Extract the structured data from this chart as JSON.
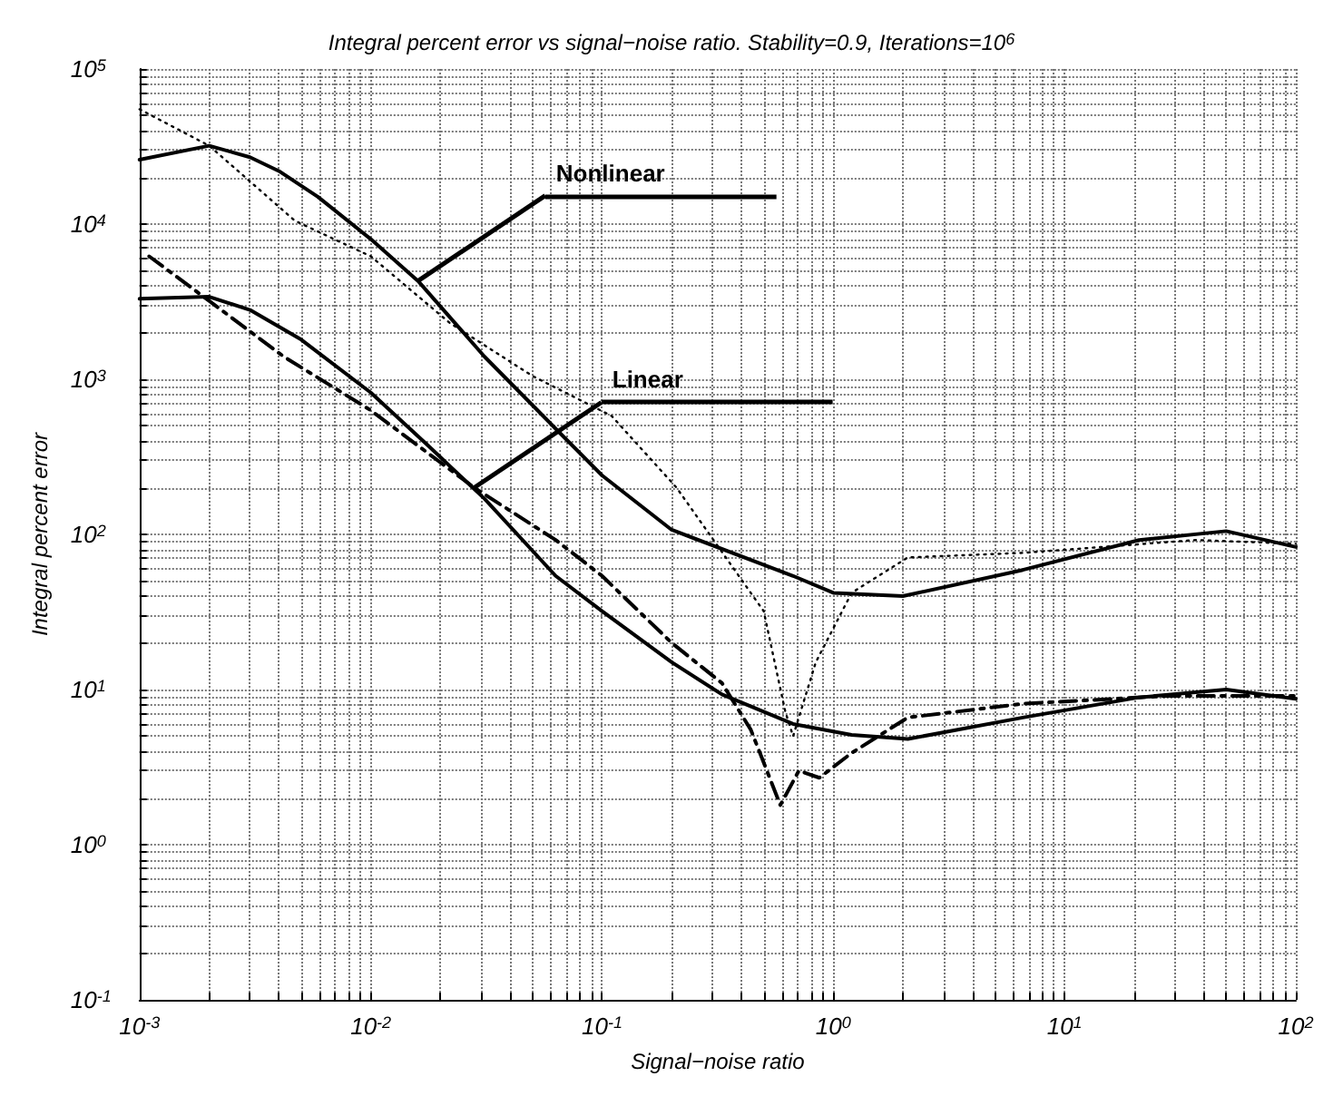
{
  "chart_data": {
    "type": "line",
    "title": "Integral percent error vs signal−noise ratio. Stability=0.9, Iterations=10$^{6}$",
    "xlabel": "Signal−noise ratio",
    "ylabel": "Integral percent error",
    "log": "xy",
    "grid": true,
    "marker": "none",
    "xlim": [
      0.001,
      100
    ],
    "ylim": [
      0.1,
      100000
    ],
    "xticks": [
      {
        "value": 0.001,
        "label": "10$^{-3}$"
      },
      {
        "value": 0.002,
        "label": null
      },
      {
        "value": 0.003,
        "label": null
      },
      {
        "value": 0.004,
        "label": null
      },
      {
        "value": 0.005,
        "label": null
      },
      {
        "value": 0.006,
        "label": null
      },
      {
        "value": 0.007,
        "label": null
      },
      {
        "value": 0.008,
        "label": null
      },
      {
        "value": 0.009,
        "label": null
      },
      {
        "value": 0.01,
        "label": "10$^{-2}$"
      },
      {
        "value": 0.02,
        "label": null
      },
      {
        "value": 0.03,
        "label": null
      },
      {
        "value": 0.04,
        "label": null
      },
      {
        "value": 0.05,
        "label": null
      },
      {
        "value": 0.06,
        "label": null
      },
      {
        "value": 0.07,
        "label": null
      },
      {
        "value": 0.08,
        "label": null
      },
      {
        "value": 0.09,
        "label": null
      },
      {
        "value": 0.1,
        "label": "10$^{-1}$"
      },
      {
        "value": 0.2,
        "label": null
      },
      {
        "value": 0.3,
        "label": null
      },
      {
        "value": 0.4,
        "label": null
      },
      {
        "value": 0.5,
        "label": null
      },
      {
        "value": 0.6,
        "label": null
      },
      {
        "value": 0.7,
        "label": null
      },
      {
        "value": 0.8,
        "label": null
      },
      {
        "value": 0.9,
        "label": null
      },
      {
        "value": 1,
        "label": "10$^{0}$"
      },
      {
        "value": 2,
        "label": null
      },
      {
        "value": 3,
        "label": null
      },
      {
        "value": 4,
        "label": null
      },
      {
        "value": 5,
        "label": null
      },
      {
        "value": 6,
        "label": null
      },
      {
        "value": 7,
        "label": null
      },
      {
        "value": 8,
        "label": null
      },
      {
        "value": 9,
        "label": null
      },
      {
        "value": 10,
        "label": "10$^{1}$"
      },
      {
        "value": 20,
        "label": null
      },
      {
        "value": 30,
        "label": null
      },
      {
        "value": 40,
        "label": null
      },
      {
        "value": 50,
        "label": null
      },
      {
        "value": 60,
        "label": null
      },
      {
        "value": 70,
        "label": null
      },
      {
        "value": 80,
        "label": null
      },
      {
        "value": 90,
        "label": null
      },
      {
        "value": 100,
        "label": "10$^{2}$"
      }
    ],
    "yticks": [
      {
        "value": 0.1,
        "label": "10$^{-1}$"
      },
      {
        "value": 0.2,
        "label": null
      },
      {
        "value": 0.3,
        "label": null
      },
      {
        "value": 0.4,
        "label": null
      },
      {
        "value": 0.5,
        "label": null
      },
      {
        "value": 0.6,
        "label": null
      },
      {
        "value": 0.7,
        "label": null
      },
      {
        "value": 0.8,
        "label": null
      },
      {
        "value": 0.9,
        "label": null
      },
      {
        "value": 1,
        "label": "10$^{0}$"
      },
      {
        "value": 2,
        "label": null
      },
      {
        "value": 3,
        "label": null
      },
      {
        "value": 4,
        "label": null
      },
      {
        "value": 5,
        "label": null
      },
      {
        "value": 6,
        "label": null
      },
      {
        "value": 7,
        "label": null
      },
      {
        "value": 8,
        "label": null
      },
      {
        "value": 9,
        "label": null
      },
      {
        "value": 10,
        "label": "10$^{1}$"
      },
      {
        "value": 20,
        "label": null
      },
      {
        "value": 30,
        "label": null
      },
      {
        "value": 40,
        "label": null
      },
      {
        "value": 50,
        "label": null
      },
      {
        "value": 60,
        "label": null
      },
      {
        "value": 70,
        "label": null
      },
      {
        "value": 80,
        "label": null
      },
      {
        "value": 90,
        "label": null
      },
      {
        "value": 100,
        "label": "10$^{2}$"
      },
      {
        "value": 200,
        "label": null
      },
      {
        "value": 300,
        "label": null
      },
      {
        "value": 400,
        "label": null
      },
      {
        "value": 500,
        "label": null
      },
      {
        "value": 600,
        "label": null
      },
      {
        "value": 700,
        "label": null
      },
      {
        "value": 800,
        "label": null
      },
      {
        "value": 900,
        "label": null
      },
      {
        "value": 1000,
        "label": "10$^{3}$"
      },
      {
        "value": 2000,
        "label": null
      },
      {
        "value": 3000,
        "label": null
      },
      {
        "value": 4000,
        "label": null
      },
      {
        "value": 5000,
        "label": null
      },
      {
        "value": 6000,
        "label": null
      },
      {
        "value": 7000,
        "label": null
      },
      {
        "value": 8000,
        "label": null
      },
      {
        "value": 9000,
        "label": null
      },
      {
        "value": 10000,
        "label": "10$^{4}$"
      },
      {
        "value": 20000,
        "label": null
      },
      {
        "value": 30000,
        "label": null
      },
      {
        "value": 40000,
        "label": null
      },
      {
        "value": 50000,
        "label": null
      },
      {
        "value": 60000,
        "label": null
      },
      {
        "value": 70000,
        "label": null
      },
      {
        "value": 80000,
        "label": null
      },
      {
        "value": 90000,
        "label": null
      },
      {
        "value": 100000,
        "label": "10$^{5}$"
      }
    ],
    "annotations": [
      {
        "text": "Nonlinear",
        "x": 0.016,
        "y": 4300
      },
      {
        "text": "Linear",
        "x": 0.028,
        "y": 200
      }
    ],
    "series": [
      {
        "color": "#000000",
        "line_style": "solid",
        "x": [
          0.001,
          0.002,
          0.003,
          0.004,
          0.0059,
          0.01,
          0.016,
          0.031,
          0.063,
          0.1,
          0.2,
          0.67,
          1,
          2,
          6.6,
          21,
          50,
          100
        ],
        "values": [
          26000,
          32000,
          27000,
          22000,
          15000,
          8000,
          4300,
          1400,
          480,
          240,
          107,
          54,
          42,
          40,
          59,
          92,
          105,
          83
        ]
      },
      {
        "color": "#000000",
        "line_style": "dotted",
        "x": [
          0.001,
          0.002,
          0.0047,
          0.01,
          0.022,
          0.05,
          0.11,
          0.21,
          0.5,
          0.62,
          0.67,
          0.84,
          1.2,
          2.1,
          6.6,
          37,
          100
        ],
        "values": [
          55000,
          32000,
          10500,
          6200,
          2300,
          1050,
          580,
          200,
          32,
          7.2,
          5,
          15,
          42,
          71,
          76,
          92,
          87
        ]
      },
      {
        "color": "#000000",
        "line_style": "solid",
        "x": [
          0.001,
          0.002,
          0.003,
          0.005,
          0.01,
          0.0178,
          0.031,
          0.063,
          0.1,
          0.2,
          0.33,
          0.67,
          1.2,
          2.1,
          6.6,
          21,
          50,
          100
        ],
        "values": [
          3300,
          3400,
          2800,
          1800,
          820,
          370,
          170,
          54,
          32,
          15,
          9.3,
          6,
          5.1,
          4.8,
          6.6,
          8.9,
          10,
          8.7
        ]
      },
      {
        "color": "#000000",
        "line_style": "dashed",
        "x": [
          0.0011,
          0.002,
          0.0042,
          0.01,
          0.028,
          0.063,
          0.1,
          0.2,
          0.33,
          0.44,
          0.59,
          0.71,
          0.87,
          1.2,
          2.1,
          6.6,
          28,
          100
        ],
        "values": [
          6200,
          3200,
          1400,
          630,
          200,
          92,
          54,
          20,
          11,
          5.5,
          1.8,
          3,
          2.7,
          3.9,
          6.6,
          8.1,
          9.1,
          9.1
        ]
      }
    ]
  }
}
